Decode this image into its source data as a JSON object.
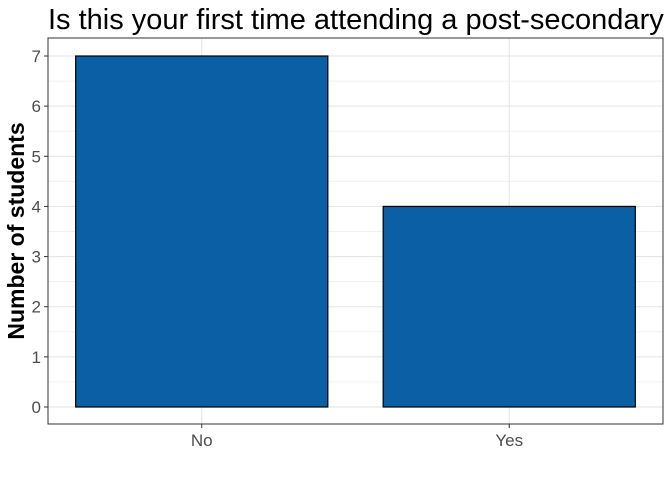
{
  "chart_data": {
    "type": "bar",
    "title": "Is this your first time attending a post-secondary institution?",
    "xlabel": "",
    "ylabel": "Number of students",
    "categories": [
      "No",
      "Yes"
    ],
    "values": [
      7,
      4
    ],
    "ylim": [
      0,
      7
    ],
    "yticks": [
      0,
      1,
      2,
      3,
      4,
      5,
      6,
      7
    ],
    "grid": true,
    "bar_color": "#0b5fa5",
    "bar_outline_color": "#000000"
  }
}
